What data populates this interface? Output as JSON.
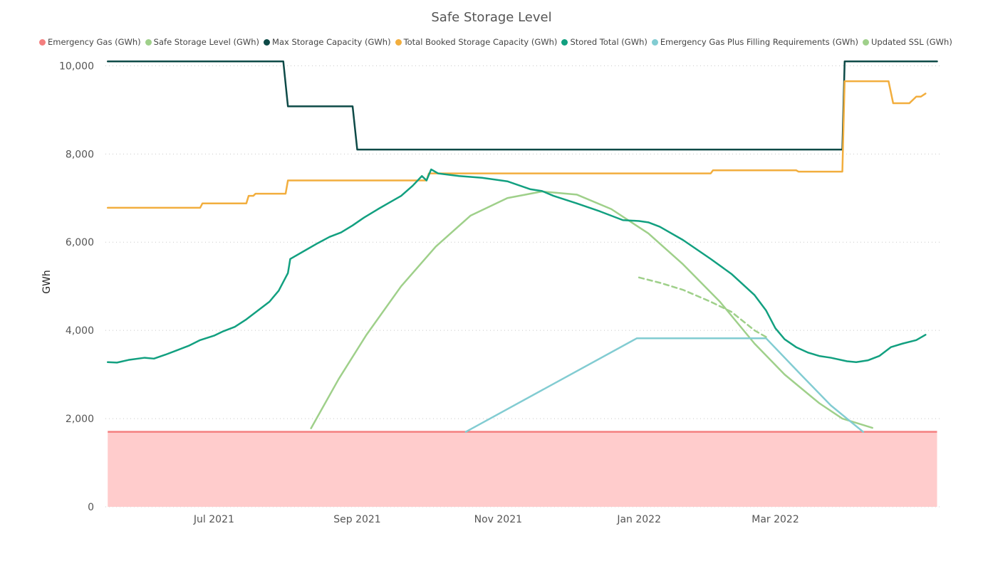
{
  "chart_data": {
    "type": "line",
    "title": "Safe Storage Level",
    "ylabel": "GWh",
    "xlabel": "",
    "ylim": [
      0,
      10200
    ],
    "xlim": [
      "2021-05-15",
      "2022-05-12"
    ],
    "grid": "horizontal-dotted",
    "legend_position": "top",
    "y_ticks": [
      {
        "value": 0,
        "label": "0"
      },
      {
        "value": 2000,
        "label": "2,000"
      },
      {
        "value": 4000,
        "label": "4,000"
      },
      {
        "value": 6000,
        "label": "6,000"
      },
      {
        "value": 8000,
        "label": "8,000"
      },
      {
        "value": 10000,
        "label": "10,000"
      }
    ],
    "x_ticks": [
      {
        "date": "2021-07-01",
        "label": "Jul 2021"
      },
      {
        "date": "2021-09-01",
        "label": "Sep 2021"
      },
      {
        "date": "2021-11-01",
        "label": "Nov 2021"
      },
      {
        "date": "2022-01-01",
        "label": "Jan 2022"
      },
      {
        "date": "2022-03-01",
        "label": "Mar 2022"
      }
    ],
    "series": [
      {
        "name": "Emergency Gas (GWh)",
        "color": "#f47f7f",
        "fill": "#ffcccc",
        "style": "area",
        "points": [
          [
            "2021-05-16",
            1700
          ],
          [
            "2022-05-10",
            1700
          ]
        ]
      },
      {
        "name": "Safe Storage Level (GWh)",
        "color": "#9fd08a",
        "style": "solid",
        "points": [
          [
            "2021-08-12",
            1780
          ],
          [
            "2021-08-24",
            2900
          ],
          [
            "2021-09-05",
            3900
          ],
          [
            "2021-09-20",
            5000
          ],
          [
            "2021-10-05",
            5900
          ],
          [
            "2021-10-20",
            6600
          ],
          [
            "2021-11-05",
            7000
          ],
          [
            "2021-11-20",
            7150
          ],
          [
            "2021-12-05",
            7080
          ],
          [
            "2021-12-20",
            6750
          ],
          [
            "2022-01-05",
            6200
          ],
          [
            "2022-01-20",
            5500
          ],
          [
            "2022-02-05",
            4650
          ],
          [
            "2022-02-20",
            3700
          ],
          [
            "2022-03-05",
            3000
          ],
          [
            "2022-03-20",
            2350
          ],
          [
            "2022-03-30",
            2000
          ],
          [
            "2022-04-12",
            1790
          ]
        ]
      },
      {
        "name": "Max Storage Capacity (GWh)",
        "color": "#0d4a47",
        "style": "step",
        "points": [
          [
            "2021-05-16",
            10100
          ],
          [
            "2021-07-31",
            10100
          ],
          [
            "2021-08-02",
            9080
          ],
          [
            "2021-08-30",
            9080
          ],
          [
            "2021-09-01",
            8100
          ],
          [
            "2022-03-30",
            8100
          ],
          [
            "2022-03-31",
            10100
          ],
          [
            "2022-05-10",
            10100
          ]
        ]
      },
      {
        "name": "Total Booked Storage Capacity (GWh)",
        "color": "#f2ae3e",
        "style": "step",
        "points": [
          [
            "2021-05-16",
            6780
          ],
          [
            "2021-06-25",
            6780
          ],
          [
            "2021-06-26",
            6880
          ],
          [
            "2021-07-15",
            6880
          ],
          [
            "2021-07-16",
            7050
          ],
          [
            "2021-07-18",
            7050
          ],
          [
            "2021-07-19",
            7100
          ],
          [
            "2021-08-01",
            7100
          ],
          [
            "2021-08-02",
            7400
          ],
          [
            "2021-10-01",
            7400
          ],
          [
            "2021-10-02",
            7560
          ],
          [
            "2022-02-01",
            7560
          ],
          [
            "2022-02-02",
            7630
          ],
          [
            "2022-03-10",
            7630
          ],
          [
            "2022-03-11",
            7600
          ],
          [
            "2022-03-30",
            7600
          ],
          [
            "2022-03-31",
            9650
          ],
          [
            "2022-04-19",
            9650
          ],
          [
            "2022-04-21",
            9150
          ],
          [
            "2022-04-28",
            9150
          ],
          [
            "2022-05-01",
            9300
          ],
          [
            "2022-05-03",
            9300
          ],
          [
            "2022-05-05",
            9370
          ]
        ]
      },
      {
        "name": "Stored Total (GWh)",
        "color": "#12a080",
        "style": "solid",
        "points": [
          [
            "2021-05-16",
            3280
          ],
          [
            "2021-05-20",
            3270
          ],
          [
            "2021-05-25",
            3330
          ],
          [
            "2021-06-01",
            3380
          ],
          [
            "2021-06-05",
            3360
          ],
          [
            "2021-06-10",
            3450
          ],
          [
            "2021-06-15",
            3550
          ],
          [
            "2021-06-20",
            3650
          ],
          [
            "2021-06-25",
            3780
          ],
          [
            "2021-07-01",
            3880
          ],
          [
            "2021-07-05",
            3980
          ],
          [
            "2021-07-10",
            4080
          ],
          [
            "2021-07-15",
            4250
          ],
          [
            "2021-07-20",
            4450
          ],
          [
            "2021-07-25",
            4650
          ],
          [
            "2021-07-29",
            4900
          ],
          [
            "2021-08-01",
            5200
          ],
          [
            "2021-08-02",
            5300
          ],
          [
            "2021-08-03",
            5620
          ],
          [
            "2021-08-10",
            5830
          ],
          [
            "2021-08-15",
            5980
          ],
          [
            "2021-08-20",
            6120
          ],
          [
            "2021-08-25",
            6220
          ],
          [
            "2021-08-30",
            6380
          ],
          [
            "2021-09-04",
            6560
          ],
          [
            "2021-09-10",
            6750
          ],
          [
            "2021-09-15",
            6900
          ],
          [
            "2021-09-20",
            7050
          ],
          [
            "2021-09-25",
            7280
          ],
          [
            "2021-09-29",
            7500
          ],
          [
            "2021-10-01",
            7400
          ],
          [
            "2021-10-03",
            7650
          ],
          [
            "2021-10-06",
            7560
          ],
          [
            "2021-10-15",
            7500
          ],
          [
            "2021-10-25",
            7460
          ],
          [
            "2021-11-05",
            7380
          ],
          [
            "2021-11-15",
            7200
          ],
          [
            "2021-11-20",
            7160
          ],
          [
            "2021-11-25",
            7050
          ],
          [
            "2021-12-05",
            6880
          ],
          [
            "2021-12-15",
            6700
          ],
          [
            "2021-12-25",
            6500
          ],
          [
            "2022-01-01",
            6480
          ],
          [
            "2022-01-05",
            6450
          ],
          [
            "2022-01-10",
            6350
          ],
          [
            "2022-01-20",
            6050
          ],
          [
            "2022-02-01",
            5620
          ],
          [
            "2022-02-10",
            5280
          ],
          [
            "2022-02-20",
            4800
          ],
          [
            "2022-02-25",
            4450
          ],
          [
            "2022-03-01",
            4050
          ],
          [
            "2022-03-05",
            3800
          ],
          [
            "2022-03-10",
            3620
          ],
          [
            "2022-03-15",
            3500
          ],
          [
            "2022-03-20",
            3420
          ],
          [
            "2022-03-25",
            3380
          ],
          [
            "2022-04-01",
            3300
          ],
          [
            "2022-04-05",
            3280
          ],
          [
            "2022-04-10",
            3320
          ],
          [
            "2022-04-15",
            3420
          ],
          [
            "2022-04-20",
            3620
          ],
          [
            "2022-04-25",
            3700
          ],
          [
            "2022-05-01",
            3780
          ],
          [
            "2022-05-05",
            3900
          ]
        ]
      },
      {
        "name": "Emergency Gas Plus Filling Requirements (GWh)",
        "color": "#82ccd2",
        "style": "solid",
        "points": [
          [
            "2021-10-18",
            1700
          ],
          [
            "2021-12-31",
            3820
          ],
          [
            "2022-02-25",
            3820
          ],
          [
            "2022-03-12",
            3000
          ],
          [
            "2022-03-25",
            2300
          ],
          [
            "2022-04-08",
            1700
          ]
        ]
      },
      {
        "name": "Updated SSL (GWh)",
        "color": "#9fd08a",
        "style": "dashed",
        "points": [
          [
            "2022-01-01",
            5200
          ],
          [
            "2022-01-10",
            5080
          ],
          [
            "2022-01-20",
            4920
          ],
          [
            "2022-02-01",
            4650
          ],
          [
            "2022-02-10",
            4420
          ],
          [
            "2022-02-20",
            4000
          ],
          [
            "2022-02-25",
            3850
          ]
        ]
      }
    ]
  }
}
